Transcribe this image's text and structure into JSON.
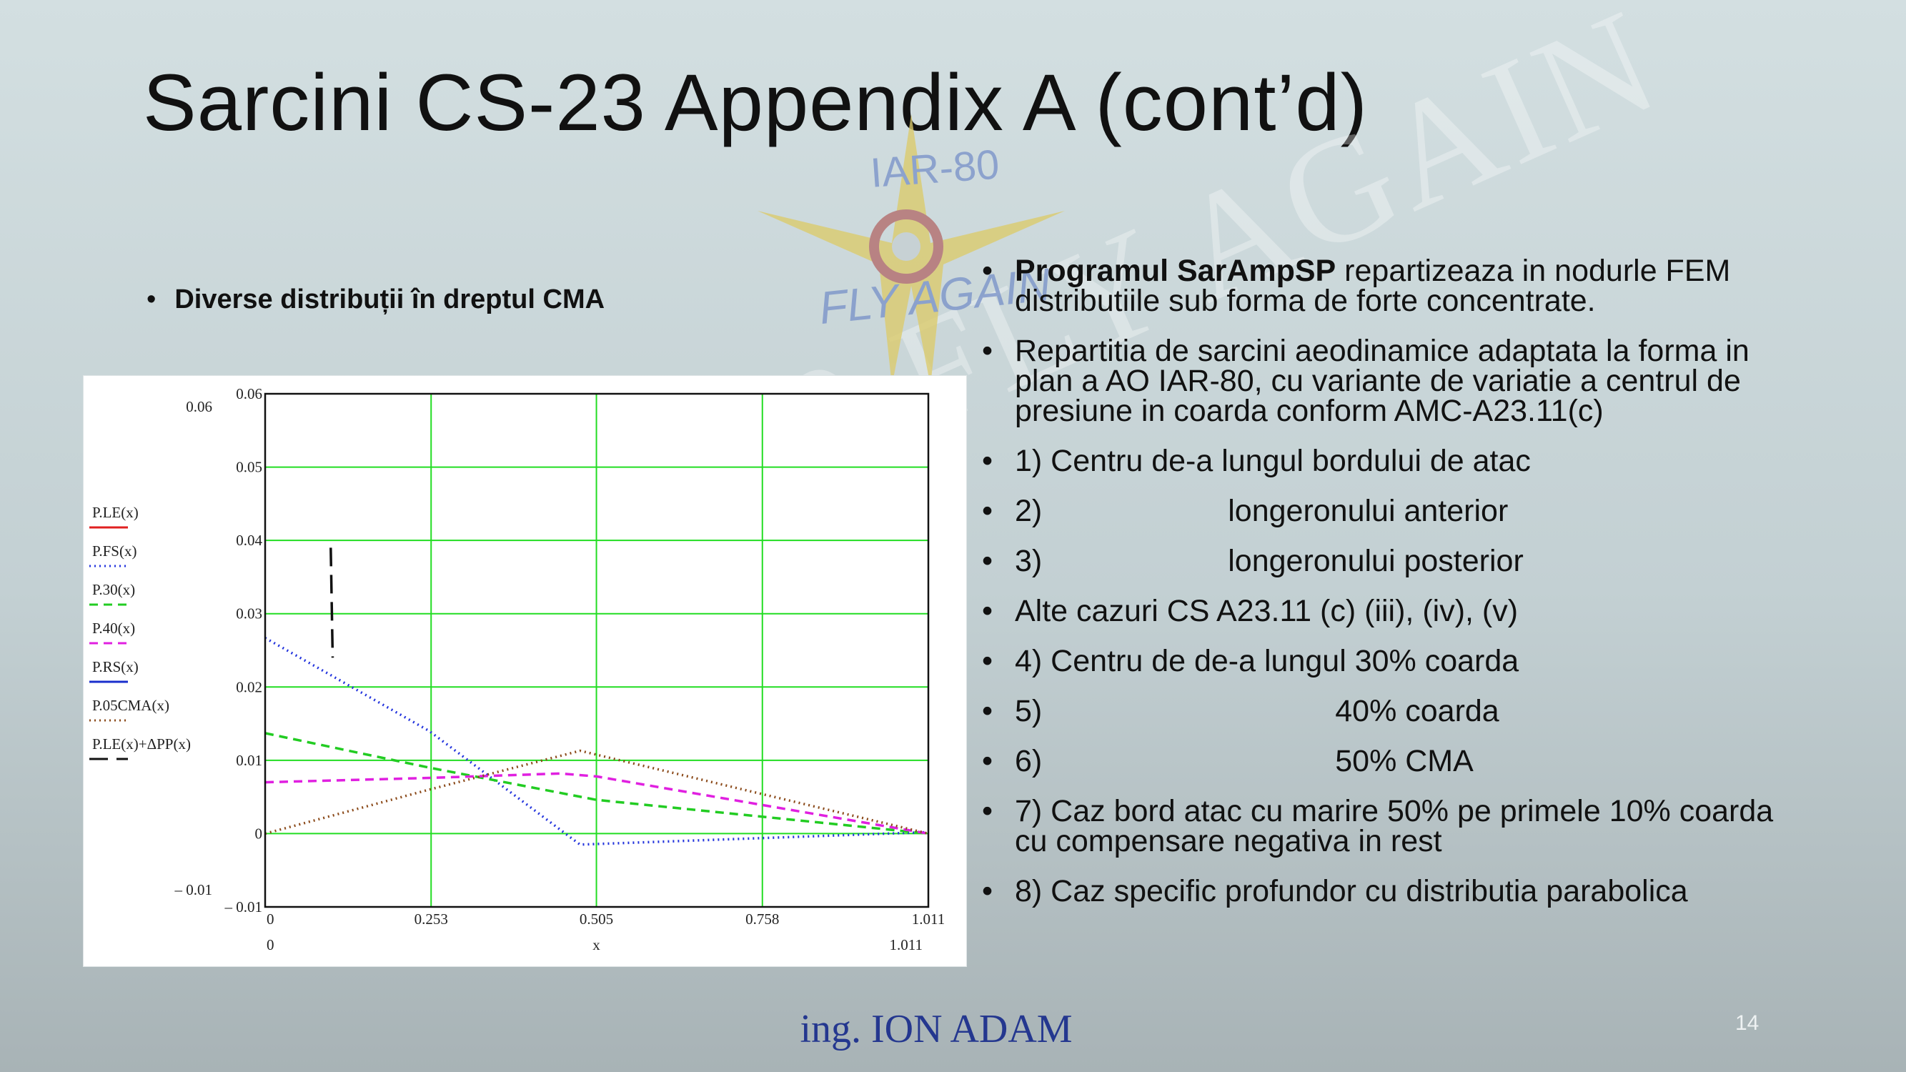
{
  "slide": {
    "title": "Sarcini CS-23 Appendix A (cont’d)",
    "left_bullet": "Diverse distribuții în dreptul CMA",
    "footer_author": "ing. ION ADAM",
    "page_number": "14",
    "watermark_text": "IAR 80 FLY AGAIN"
  },
  "logo": {
    "top_text": "IAR-80",
    "bottom_text": "FLY AGAIN",
    "colors": {
      "star": "#dccb6b",
      "ring": "#b36b6b",
      "text": "#7a93c9"
    }
  },
  "bullets": [
    {
      "bold": "Programul SarAmpSP",
      "text": " repartizeaza in nodurle FEM distributiile sub forma de forte concentrate."
    },
    {
      "bold": "",
      "text": " Repartitia de sarcini aeodinamice adaptata la forma in plan a AO IAR-80, cu variante de variatie a centrul de presiune in coarda conform AMC-A23.11(c)"
    },
    {
      "bold": "",
      "text": " 1) Centru de-a lungul bordului de atac"
    },
    {
      "bold": "",
      "text": " 2)",
      "tail": "longeronului anterior"
    },
    {
      "bold": "",
      "text": " 3)",
      "tail": "longeronului posterior"
    },
    {
      "bold": "",
      "text": " Alte cazuri CS A23.11 (c) (iii), (iv), (v)"
    },
    {
      "bold": "",
      "text": " 4) Centru de de-a lungul 30% coarda"
    },
    {
      "bold": "",
      "text": " 5)",
      "tail": "40% coarda"
    },
    {
      "bold": "",
      "text": " 6)",
      "tail": "50% CMA"
    },
    {
      "bold": "",
      "text": " 7) Caz bord atac cu marire 50% pe primele 10% coarda cu  compensare negativa in rest"
    },
    {
      "bold": "",
      "text": " 8) Caz specific profundor cu distributia parabolica"
    }
  ],
  "chart_data": {
    "type": "line",
    "title": "",
    "xlabel": "x",
    "ylabel": "",
    "xlim": [
      0,
      1.011
    ],
    "ylim": [
      -0.01,
      0.06
    ],
    "x_ticks": [
      "0",
      "0.253",
      "0.505",
      "0.758",
      "1.011"
    ],
    "x_range_labels": [
      "0",
      "1.011"
    ],
    "y_ticks": [
      "0.06",
      "0.05",
      "0.04",
      "0.03",
      "0.02",
      "0.01",
      "0",
      "– 0.01"
    ],
    "y_range_labels": [
      "0.06",
      "– 0.01"
    ],
    "grid": true,
    "grid_color": "#22dd22",
    "legend_position": "left",
    "series": [
      {
        "name": "P.LE(x)",
        "color": "#e02020",
        "dash": "solid",
        "points": []
      },
      {
        "name": "P.FS(x)",
        "color": "#2233dd",
        "dash": "dotted",
        "points": [
          [
            0,
            0.0267
          ],
          [
            0.25,
            0.014
          ],
          [
            0.48,
            -0.0015
          ],
          [
            1.011,
            0.0002
          ]
        ]
      },
      {
        "name": "P.30(x)",
        "color": "#22cc22",
        "dash": "dashed",
        "points": [
          [
            0,
            0.0137
          ],
          [
            0.25,
            0.009
          ],
          [
            0.505,
            0.0046
          ],
          [
            1.011,
            0
          ]
        ]
      },
      {
        "name": "P.40(x)",
        "color": "#e020e0",
        "dash": "dashed",
        "points": [
          [
            0,
            0.007
          ],
          [
            0.25,
            0.0076
          ],
          [
            0.45,
            0.0082
          ],
          [
            0.505,
            0.0078
          ],
          [
            1.011,
            0
          ]
        ]
      },
      {
        "name": "P.RS(x)",
        "color": "#1a2fcc",
        "dash": "solid",
        "points": []
      },
      {
        "name": "P.05CMA(x)",
        "color": "#8b4a1a",
        "dash": "dotted",
        "points": [
          [
            0,
            0
          ],
          [
            0.25,
            0.006
          ],
          [
            0.48,
            0.0113
          ],
          [
            1.011,
            0
          ]
        ]
      },
      {
        "name": "P.LE(x)+ΔPP(x)",
        "color": "#111111",
        "dash": "longdash",
        "points": [
          [
            0.1,
            0.039
          ],
          [
            0.103,
            0.024
          ]
        ]
      }
    ]
  }
}
